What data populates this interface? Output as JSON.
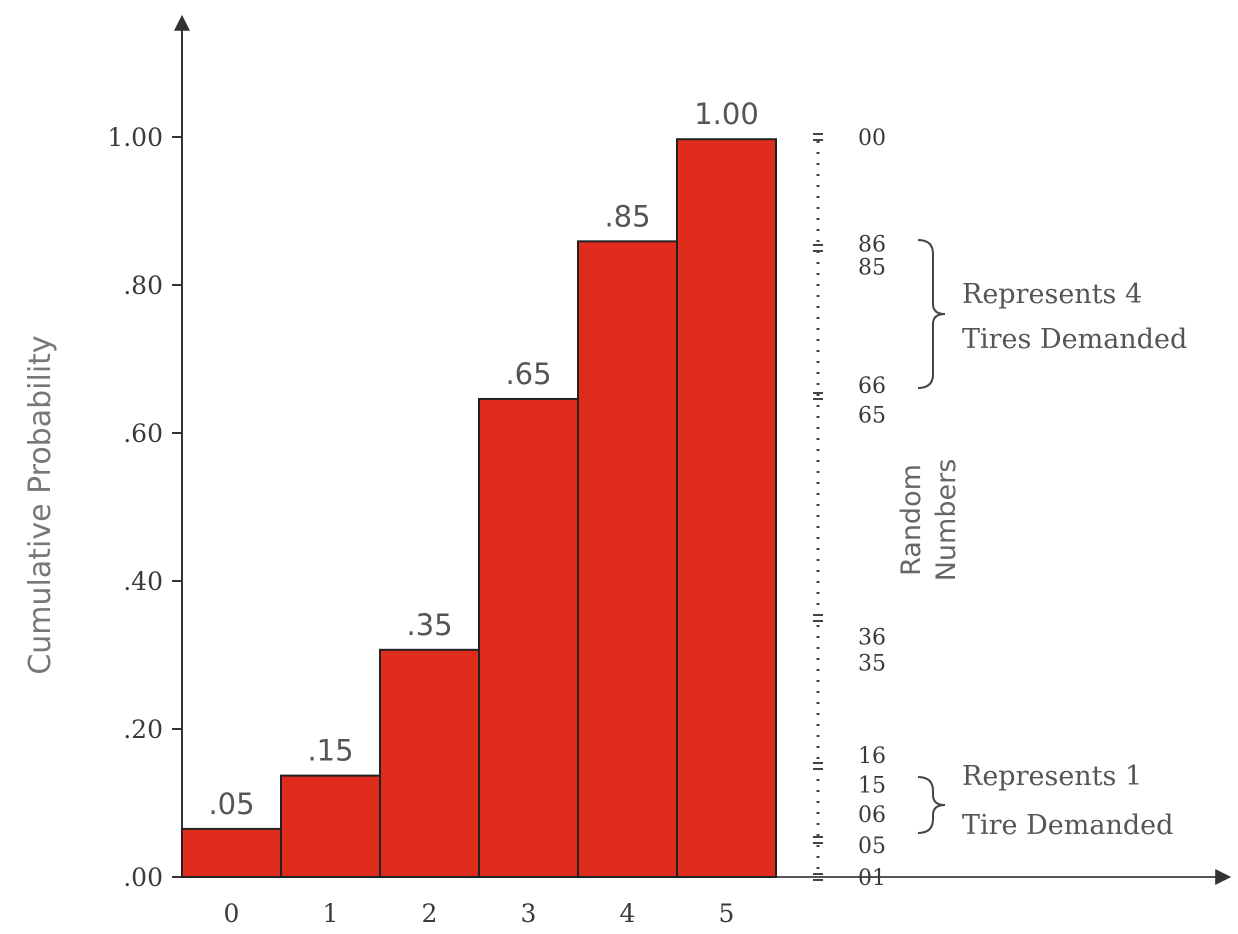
{
  "chart_data": {
    "type": "bar",
    "ylabel": "Cumulative Probability",
    "xlabel": "",
    "categories": [
      "0",
      "1",
      "2",
      "3",
      "4",
      "5"
    ],
    "values": [
      0.05,
      0.15,
      0.35,
      0.65,
      0.85,
      1.0
    ],
    "bar_heights_display": [
      0.065,
      0.137,
      0.307,
      0.646,
      0.859,
      0.997
    ],
    "data_labels": [
      ".05",
      ".15",
      ".35",
      ".65",
      ".85",
      "1.00"
    ],
    "ylim": [
      0,
      1
    ],
    "yticks": [
      {
        "value": 0.0,
        "label": ".00"
      },
      {
        "value": 0.2,
        "label": ".20"
      },
      {
        "value": 0.4,
        "label": ".40"
      },
      {
        "value": 0.6,
        "label": ".60"
      },
      {
        "value": 0.8,
        "label": ".80"
      },
      {
        "value": 1.0,
        "label": "1.00"
      }
    ],
    "bar_color": "#e02c1c",
    "bar_edge_color": "#222222",
    "grid": false,
    "random_numbers": {
      "title_line1": "Random",
      "title_line2": "Numbers",
      "labels": [
        {
          "value": 1.0,
          "label": "00"
        },
        {
          "value": 0.856,
          "label": "86"
        },
        {
          "value": 0.825,
          "label": "85"
        },
        {
          "value": 0.665,
          "label": "66"
        },
        {
          "value": 0.625,
          "label": "65"
        },
        {
          "value": 0.325,
          "label": "36"
        },
        {
          "value": 0.29,
          "label": "35"
        },
        {
          "value": 0.165,
          "label": "16"
        },
        {
          "value": 0.125,
          "label": "15"
        },
        {
          "value": 0.085,
          "label": "06"
        },
        {
          "value": 0.043,
          "label": "05"
        },
        {
          "value": 0.0,
          "label": "01"
        }
      ],
      "separators": [
        1.0,
        0.85,
        0.65,
        0.35,
        0.15,
        0.05,
        0.0
      ]
    },
    "annotations": [
      {
        "line1": "Represents 4",
        "line2": "Tires Demanded",
        "range": [
          0.65,
          0.85
        ]
      },
      {
        "line1": "Represents 1",
        "line2": "Tire Demanded",
        "range": [
          0.05,
          0.15
        ]
      }
    ]
  }
}
